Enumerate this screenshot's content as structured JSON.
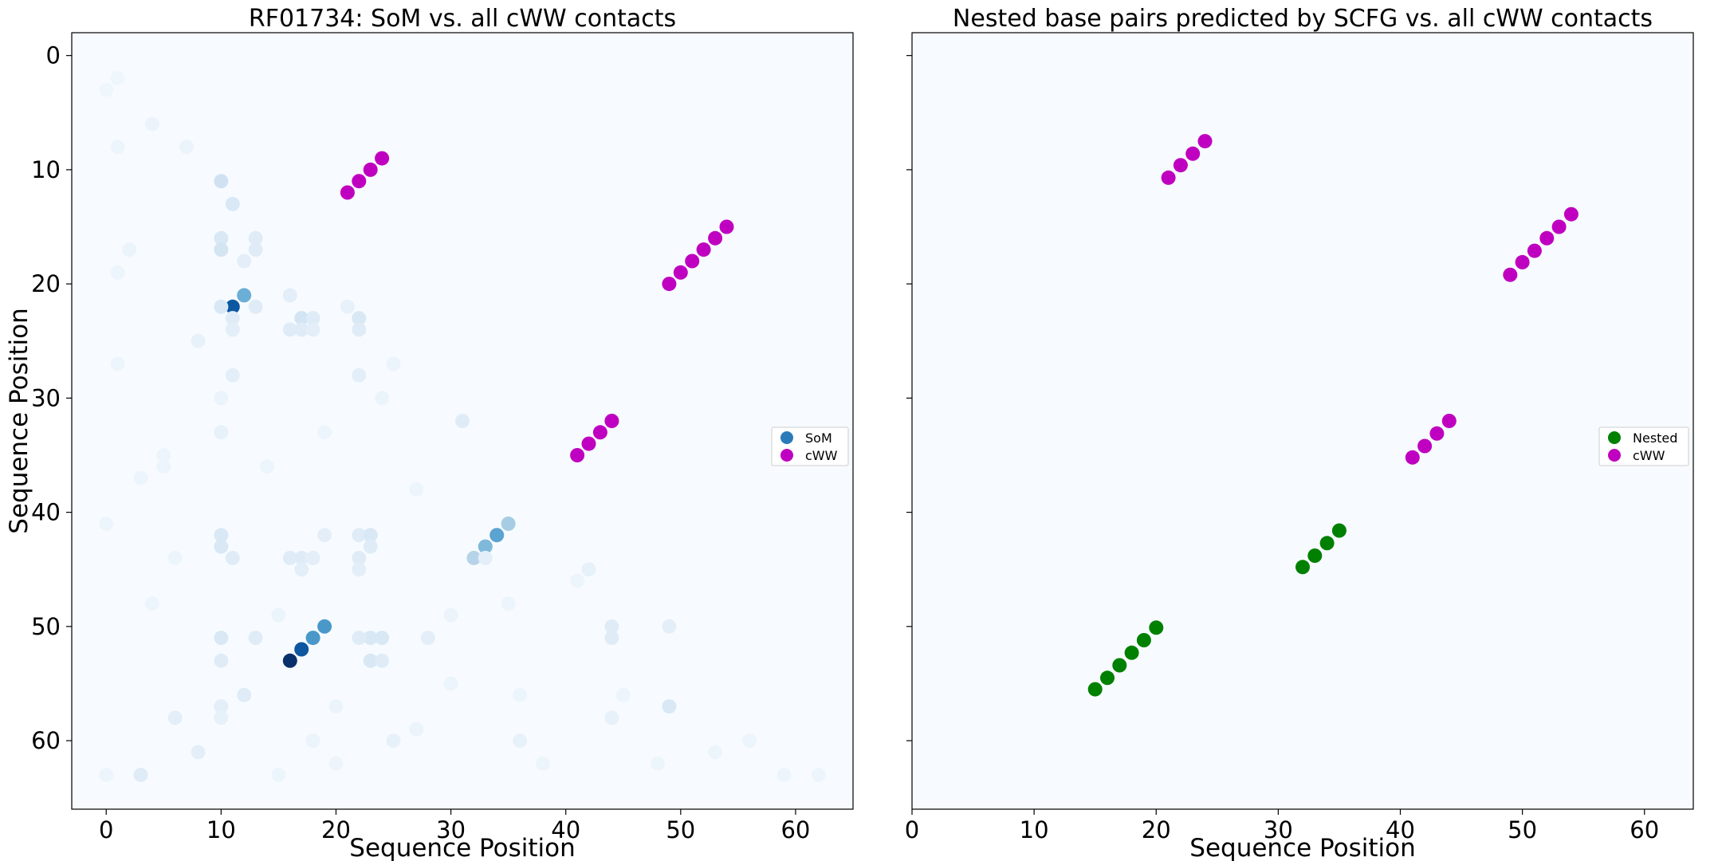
{
  "colors": {
    "background": "#f7fbff",
    "som_legend": "#2b7bba",
    "cww": "#c000c0",
    "nested": "#008000",
    "som_low": "#f7fbff",
    "som_high": "#08306b"
  },
  "chart_data": [
    {
      "type": "scatter",
      "title": "RF01734: SoM vs. all cWW contacts",
      "xlabel": "Sequence Position",
      "ylabel": "Sequence Position",
      "xlim": [
        -3,
        65
      ],
      "ylim": [
        66,
        -2
      ],
      "y_inverted": true,
      "x_ticks": [
        "0",
        "10",
        "20",
        "30",
        "40",
        "50",
        "60"
      ],
      "y_ticks": [
        "0",
        "10",
        "20",
        "30",
        "40",
        "50",
        "60"
      ],
      "grid": false,
      "legend": {
        "placement": "center-right",
        "entries": [
          "SoM",
          "cWW"
        ]
      },
      "series": [
        {
          "name": "SoM",
          "color_scale": "Blues",
          "points": [
            [
              11,
              22,
              0.85
            ],
            [
              12,
              21,
              0.5
            ],
            [
              10,
              11,
              0.2
            ],
            [
              11,
              13,
              0.15
            ],
            [
              10,
              16,
              0.15
            ],
            [
              10,
              17,
              0.18
            ],
            [
              13,
              16,
              0.12
            ],
            [
              13,
              17,
              0.12
            ],
            [
              12,
              18,
              0.1
            ],
            [
              10,
              22,
              0.15
            ],
            [
              13,
              22,
              0.12
            ],
            [
              11,
              23,
              0.12
            ],
            [
              11,
              24,
              0.1
            ],
            [
              11,
              28,
              0.1
            ],
            [
              17,
              23,
              0.18
            ],
            [
              16,
              24,
              0.12
            ],
            [
              17,
              24,
              0.12
            ],
            [
              18,
              23,
              0.12
            ],
            [
              18,
              24,
              0.1
            ],
            [
              22,
              23,
              0.15
            ],
            [
              22,
              24,
              0.12
            ],
            [
              22,
              28,
              0.1
            ],
            [
              16,
              21,
              0.1
            ],
            [
              21,
              22,
              0.08
            ],
            [
              31,
              32,
              0.12
            ],
            [
              34,
              42,
              0.55
            ],
            [
              33,
              43,
              0.45
            ],
            [
              35,
              41,
              0.35
            ],
            [
              32,
              44,
              0.3
            ],
            [
              19,
              50,
              0.6
            ],
            [
              18,
              51,
              0.6
            ],
            [
              17,
              52,
              0.85
            ],
            [
              16,
              53,
              1.0
            ],
            [
              10,
              42,
              0.15
            ],
            [
              10,
              43,
              0.15
            ],
            [
              11,
              44,
              0.12
            ],
            [
              10,
              51,
              0.15
            ],
            [
              10,
              53,
              0.12
            ],
            [
              13,
              51,
              0.12
            ],
            [
              12,
              56,
              0.12
            ],
            [
              10,
              57,
              0.1
            ],
            [
              16,
              44,
              0.12
            ],
            [
              17,
              44,
              0.12
            ],
            [
              17,
              45,
              0.1
            ],
            [
              18,
              44,
              0.1
            ],
            [
              19,
              42,
              0.1
            ],
            [
              22,
              42,
              0.12
            ],
            [
              23,
              42,
              0.15
            ],
            [
              23,
              43,
              0.12
            ],
            [
              22,
              44,
              0.12
            ],
            [
              22,
              45,
              0.1
            ],
            [
              23,
              51,
              0.15
            ],
            [
              24,
              51,
              0.15
            ],
            [
              22,
              51,
              0.12
            ],
            [
              23,
              53,
              0.15
            ],
            [
              24,
              53,
              0.12
            ],
            [
              28,
              51,
              0.1
            ],
            [
              33,
              44,
              0.1
            ],
            [
              44,
              50,
              0.12
            ],
            [
              44,
              51,
              0.12
            ],
            [
              49,
              50,
              0.1
            ],
            [
              49,
              57,
              0.15
            ],
            [
              42,
              45,
              0.08
            ],
            [
              6,
              58,
              0.1
            ],
            [
              3,
              63,
              0.12
            ],
            [
              8,
              61,
              0.1
            ],
            [
              10,
              58,
              0.08
            ],
            [
              25,
              60,
              0.08
            ],
            [
              36,
              60,
              0.08
            ],
            [
              44,
              58,
              0.08
            ],
            [
              4,
              6,
              0.06
            ],
            [
              7,
              8,
              0.06
            ],
            [
              8,
              25,
              0.08
            ],
            [
              2,
              17,
              0.06
            ],
            [
              1,
              19,
              0.05
            ],
            [
              5,
              35,
              0.05
            ],
            [
              5,
              36,
              0.05
            ],
            [
              10,
              30,
              0.06
            ],
            [
              10,
              33,
              0.08
            ],
            [
              24,
              30,
              0.06
            ],
            [
              25,
              27,
              0.06
            ],
            [
              27,
              59,
              0.06
            ],
            [
              18,
              60,
              0.06
            ],
            [
              45,
              56,
              0.05
            ],
            [
              56,
              60,
              0.05
            ],
            [
              59,
              63,
              0.05
            ],
            [
              62,
              63,
              0.05
            ],
            [
              4,
              48,
              0.05
            ],
            [
              15,
              49,
              0.06
            ],
            [
              20,
              57,
              0.06
            ],
            [
              30,
              49,
              0.06
            ],
            [
              35,
              48,
              0.05
            ],
            [
              41,
              46,
              0.05
            ],
            [
              6,
              44,
              0.05
            ],
            [
              3,
              37,
              0.05
            ],
            [
              1,
              27,
              0.05
            ],
            [
              0,
              41,
              0.05
            ],
            [
              14,
              36,
              0.05
            ],
            [
              19,
              33,
              0.05
            ],
            [
              27,
              38,
              0.05
            ],
            [
              30,
              55,
              0.05
            ],
            [
              36,
              56,
              0.05
            ],
            [
              1,
              8,
              0.05
            ],
            [
              0,
              3,
              0.04
            ],
            [
              1,
              2,
              0.04
            ],
            [
              0,
              63,
              0.05
            ],
            [
              15,
              63,
              0.05
            ],
            [
              20,
              62,
              0.05
            ],
            [
              38,
              62,
              0.05
            ],
            [
              48,
              62,
              0.05
            ],
            [
              53,
              61,
              0.05
            ]
          ]
        },
        {
          "name": "cWW",
          "points": [
            [
              21,
              12
            ],
            [
              22,
              11
            ],
            [
              23,
              10
            ],
            [
              24,
              9
            ],
            [
              49,
              20
            ],
            [
              50,
              19
            ],
            [
              51,
              18
            ],
            [
              52,
              17
            ],
            [
              53,
              16
            ],
            [
              54,
              15
            ],
            [
              41,
              35
            ],
            [
              42,
              34
            ],
            [
              43,
              33
            ],
            [
              44,
              32
            ]
          ]
        }
      ]
    },
    {
      "type": "scatter",
      "title": "Nested base pairs predicted by SCFG vs. all cWW contacts",
      "xlabel": "Sequence Position",
      "xlim": [
        0,
        64
      ],
      "ylim": [
        66,
        -2
      ],
      "y_inverted": true,
      "x_ticks": [
        "0",
        "10",
        "20",
        "30",
        "40",
        "50",
        "60"
      ],
      "shared_y": true,
      "grid": false,
      "legend": {
        "placement": "center-right",
        "entries": [
          "Nested",
          "cWW"
        ]
      },
      "series": [
        {
          "name": "Nested",
          "points": [
            [
              15,
              55.5
            ],
            [
              16,
              54.5
            ],
            [
              17,
              53.4
            ],
            [
              18,
              52.3
            ],
            [
              19,
              51.2
            ],
            [
              20,
              50.1
            ],
            [
              32,
              44.8
            ],
            [
              33,
              43.8
            ],
            [
              34,
              42.7
            ],
            [
              35,
              41.6
            ]
          ]
        },
        {
          "name": "cWW",
          "points": [
            [
              21,
              10.7
            ],
            [
              22,
              9.6
            ],
            [
              23,
              8.6
            ],
            [
              24,
              7.5
            ],
            [
              49,
              19.2
            ],
            [
              50,
              18.1
            ],
            [
              51,
              17.1
            ],
            [
              52,
              16.0
            ],
            [
              53,
              15.0
            ],
            [
              54,
              13.9
            ],
            [
              41,
              35.2
            ],
            [
              42,
              34.2
            ],
            [
              43,
              33.1
            ],
            [
              44,
              32.0
            ]
          ]
        }
      ]
    }
  ]
}
